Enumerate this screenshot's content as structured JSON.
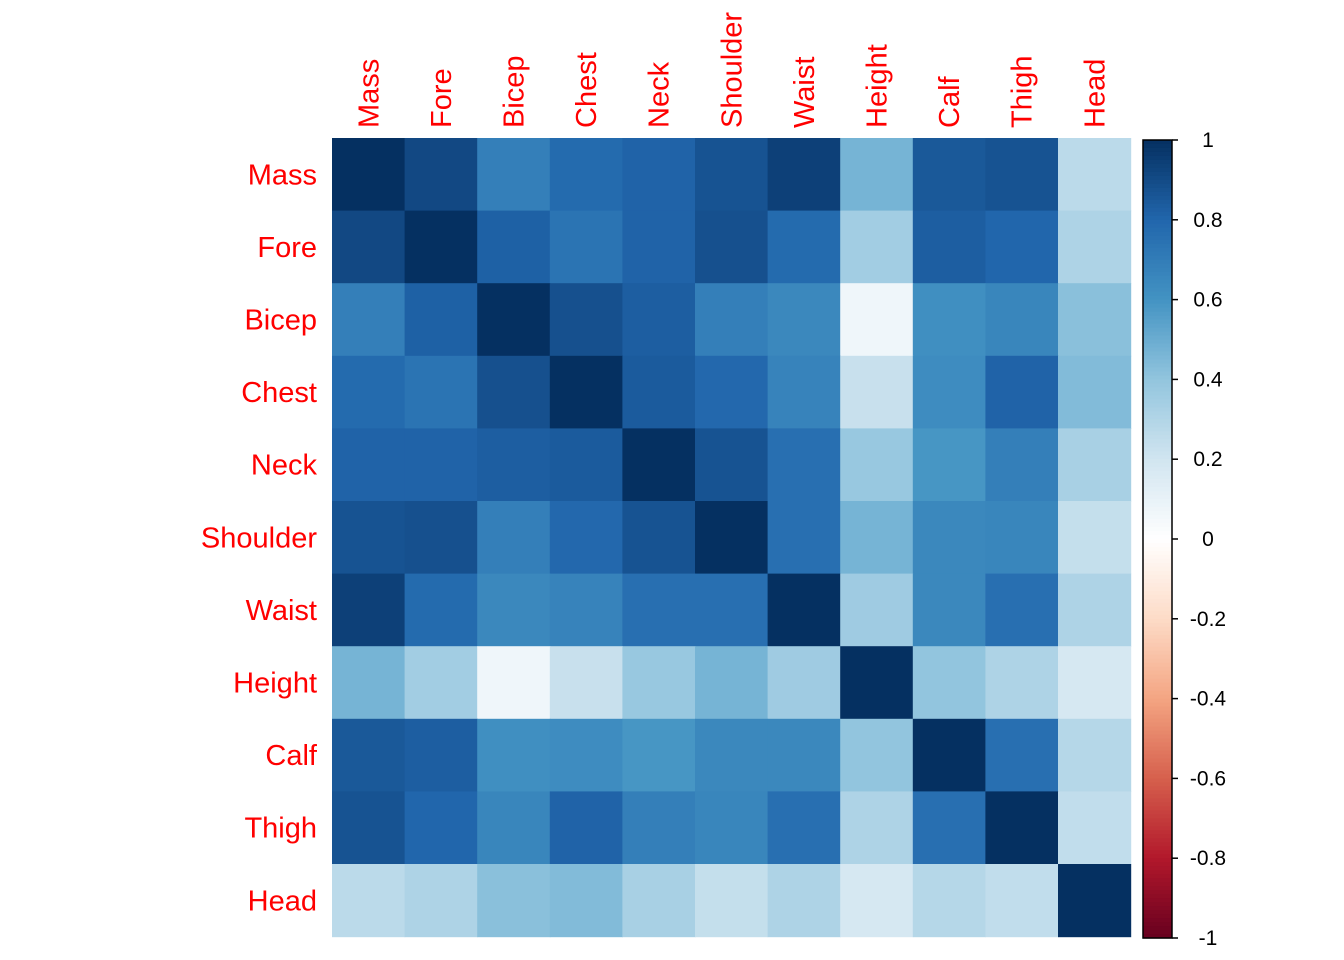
{
  "chart_data": {
    "type": "heatmap",
    "variables": [
      "Mass",
      "Fore",
      "Bicep",
      "Chest",
      "Neck",
      "Shoulder",
      "Waist",
      "Height",
      "Calf",
      "Thigh",
      "Head"
    ],
    "matrix": [
      [
        1.0,
        0.91,
        0.69,
        0.78,
        0.81,
        0.87,
        0.94,
        0.47,
        0.85,
        0.87,
        0.27
      ],
      [
        0.91,
        1.0,
        0.82,
        0.74,
        0.81,
        0.88,
        0.78,
        0.35,
        0.83,
        0.8,
        0.31
      ],
      [
        0.69,
        0.82,
        1.0,
        0.88,
        0.83,
        0.69,
        0.65,
        0.07,
        0.62,
        0.66,
        0.42
      ],
      [
        0.78,
        0.74,
        0.88,
        1.0,
        0.84,
        0.79,
        0.67,
        0.23,
        0.63,
        0.81,
        0.44
      ],
      [
        0.81,
        0.81,
        0.83,
        0.84,
        1.0,
        0.87,
        0.76,
        0.38,
        0.59,
        0.69,
        0.33
      ],
      [
        0.87,
        0.88,
        0.69,
        0.79,
        0.87,
        1.0,
        0.76,
        0.47,
        0.65,
        0.66,
        0.24
      ],
      [
        0.94,
        0.78,
        0.65,
        0.67,
        0.76,
        0.76,
        1.0,
        0.36,
        0.65,
        0.76,
        0.31
      ],
      [
        0.47,
        0.35,
        0.07,
        0.23,
        0.38,
        0.47,
        0.36,
        1.0,
        0.4,
        0.31,
        0.18
      ],
      [
        0.85,
        0.83,
        0.62,
        0.63,
        0.59,
        0.65,
        0.65,
        0.4,
        1.0,
        0.76,
        0.29
      ],
      [
        0.87,
        0.8,
        0.66,
        0.81,
        0.69,
        0.66,
        0.76,
        0.31,
        0.76,
        1.0,
        0.25
      ],
      [
        0.27,
        0.31,
        0.42,
        0.44,
        0.33,
        0.24,
        0.31,
        0.18,
        0.29,
        0.25,
        1.0
      ]
    ],
    "color_scale": {
      "range": [
        -1,
        1
      ],
      "stops": [
        {
          "value": -1.0,
          "color": "#67001f"
        },
        {
          "value": -0.8,
          "color": "#b2182b"
        },
        {
          "value": -0.6,
          "color": "#d6604d"
        },
        {
          "value": -0.4,
          "color": "#f4a582"
        },
        {
          "value": -0.2,
          "color": "#fddbc7"
        },
        {
          "value": 0.0,
          "color": "#ffffff"
        },
        {
          "value": 0.2,
          "color": "#d1e5f0"
        },
        {
          "value": 0.4,
          "color": "#92c5de"
        },
        {
          "value": 0.6,
          "color": "#4393c3"
        },
        {
          "value": 0.8,
          "color": "#2166ac"
        },
        {
          "value": 1.0,
          "color": "#053061"
        }
      ]
    },
    "colorbar_ticks": [
      "1",
      "0.8",
      "0.6",
      "0.4",
      "0.2",
      "0",
      "-0.2",
      "-0.4",
      "-0.6",
      "-0.8",
      "-1"
    ],
    "label_color": "#ff0000",
    "legend_position": "right"
  }
}
